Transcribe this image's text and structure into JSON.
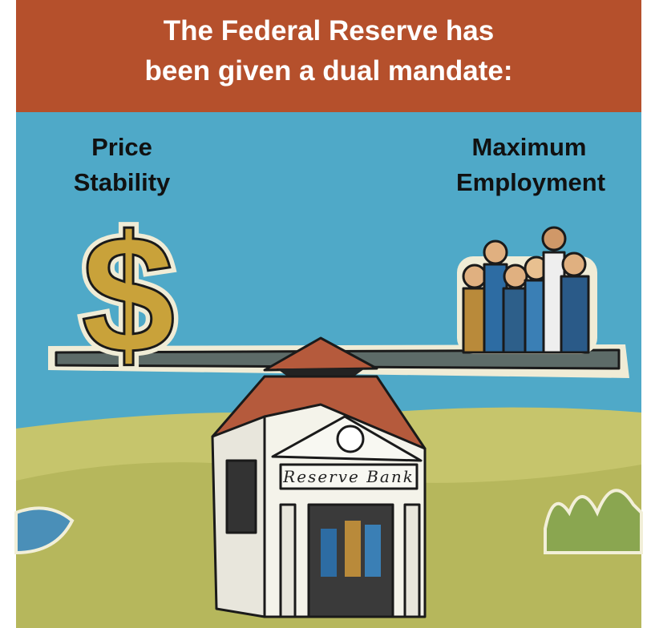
{
  "header": {
    "title_lines": [
      "The Federal Reserve has",
      "been given a dual mandate:"
    ]
  },
  "labels": {
    "left": [
      "Price",
      "Stability"
    ],
    "right": [
      "Maximum",
      "Employment"
    ]
  },
  "illustration": {
    "symbol": "$",
    "sign": "Reserve Bank"
  }
}
